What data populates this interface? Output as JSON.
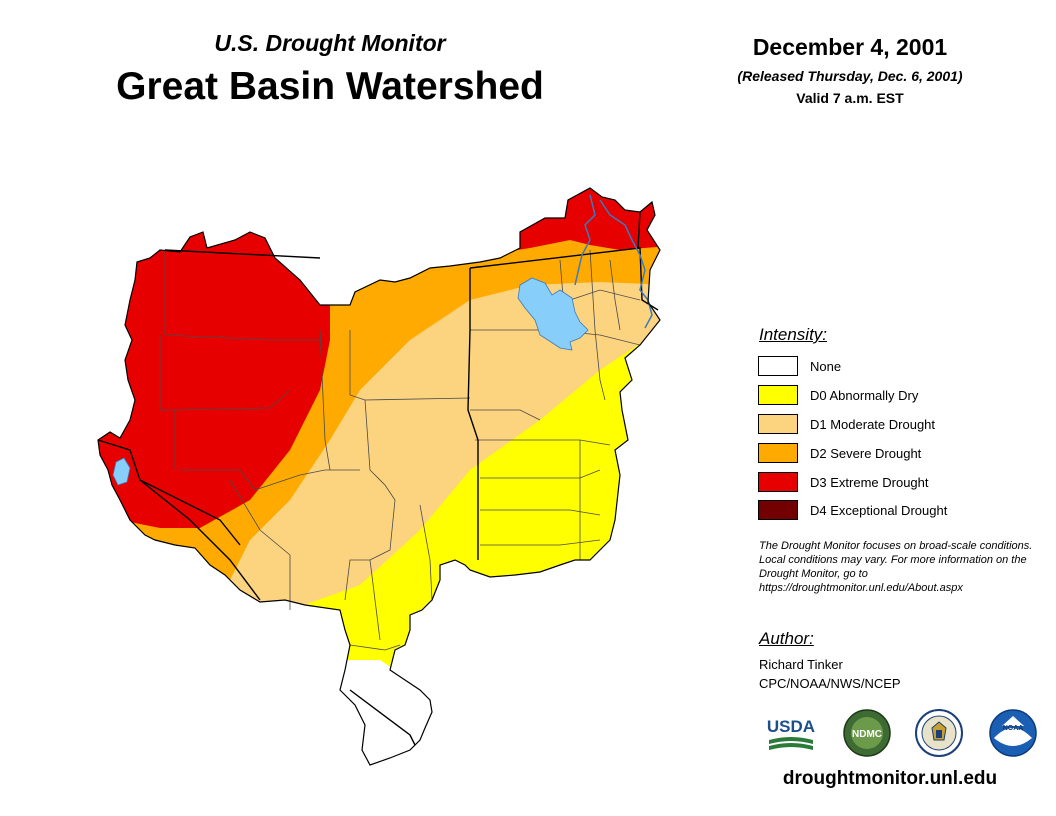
{
  "header": {
    "subtitle": "U.S. Drought Monitor",
    "title": "Great Basin Watershed",
    "date": "December 4, 2001",
    "released": "(Released Thursday, Dec. 6, 2001)",
    "valid": "Valid 7 a.m. EST"
  },
  "legend": {
    "title": "Intensity:",
    "items": [
      {
        "label": "None",
        "color": "#ffffff"
      },
      {
        "label": "D0 Abnormally Dry",
        "color": "#ffff00"
      },
      {
        "label": "D1 Moderate Drought",
        "color": "#fcd37f"
      },
      {
        "label": "D2 Severe Drought",
        "color": "#ffaa00"
      },
      {
        "label": "D3 Extreme Drought",
        "color": "#e60000"
      },
      {
        "label": "D4 Exceptional Drought",
        "color": "#730000"
      }
    ]
  },
  "note": "The Drought Monitor focuses on broad-scale conditions. Local conditions may vary. For more information on the Drought Monitor, go to https://droughtmonitor.unl.edu/About.aspx",
  "author": {
    "title": "Author:",
    "name": "Richard Tinker",
    "org": "CPC/NOAA/NWS/NCEP"
  },
  "logos": {
    "usda": "USDA",
    "ndmc": "NDMC",
    "noaa": "NOAA"
  },
  "footer_url": "droughtmonitor.unl.edu",
  "colors": {
    "water": "#87cefa",
    "border": "#000000"
  }
}
